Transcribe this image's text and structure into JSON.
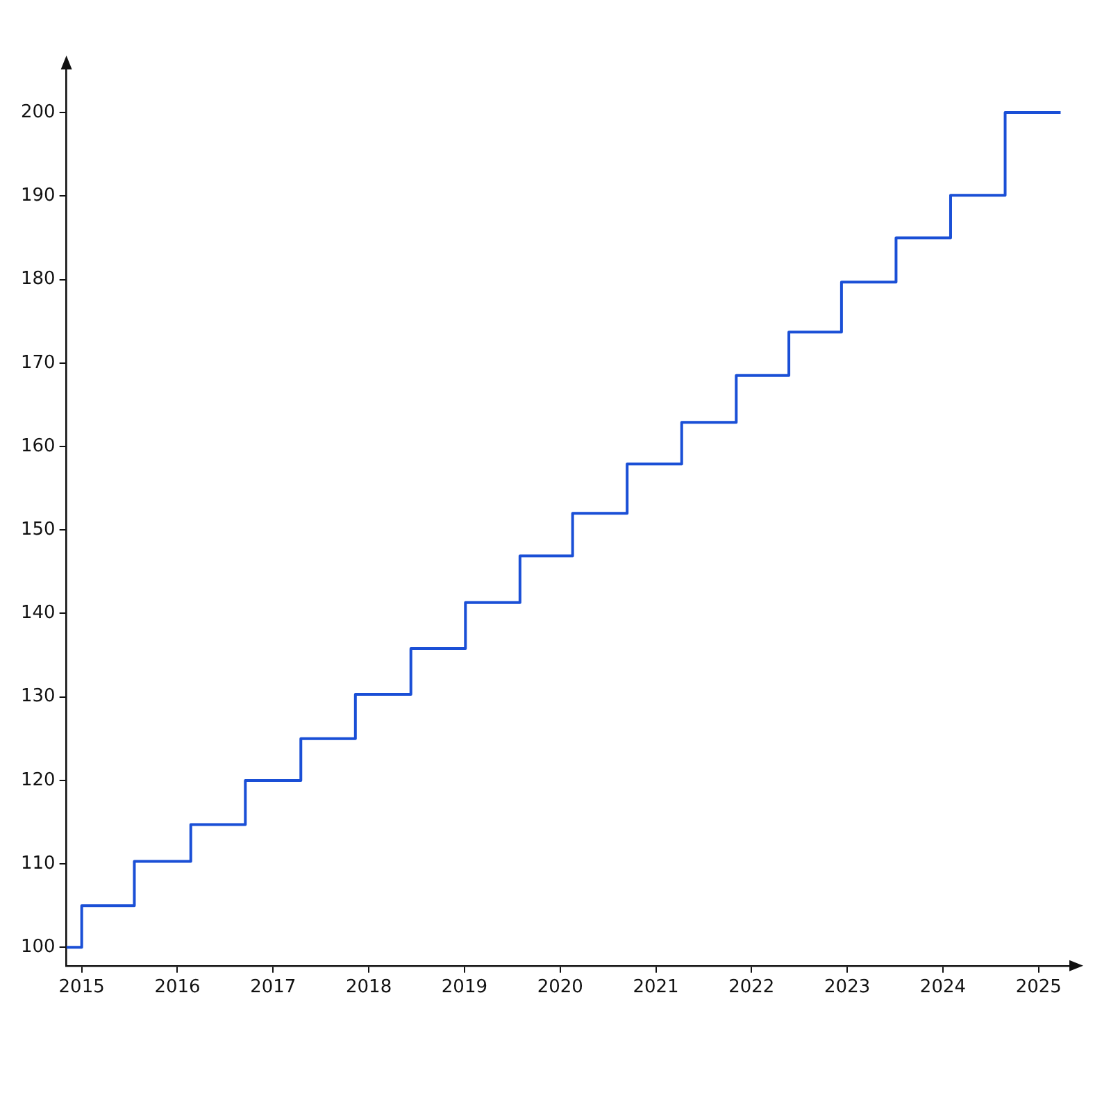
{
  "chart_data": {
    "type": "step",
    "x": [
      2014.84,
      2015.0,
      2015.55,
      2016.14,
      2016.71,
      2017.29,
      2017.86,
      2018.44,
      2019.01,
      2019.58,
      2020.13,
      2020.7,
      2021.27,
      2021.84,
      2022.39,
      2022.94,
      2023.51,
      2024.08,
      2024.65,
      2025.23
    ],
    "series": [
      {
        "color": "#1a4fd6",
        "values": [
          100,
          105,
          110.3,
          114.7,
          120,
          125,
          130.3,
          135.8,
          141.3,
          146.9,
          152,
          157.9,
          162.9,
          168.5,
          173.7,
          179.7,
          185,
          190.1,
          200,
          200
        ]
      }
    ],
    "xlim": [
      2014.84,
      2025.35
    ],
    "xticks": [
      2015,
      2016,
      2017,
      2018,
      2019,
      2020,
      2021,
      2022,
      2023,
      2024,
      2025
    ],
    "ylim": [
      97.8,
      205.5
    ],
    "yticks": [
      100,
      110,
      120,
      130,
      140,
      150,
      160,
      170,
      180,
      190,
      200
    ],
    "grid": false,
    "legend": false,
    "marker": "none",
    "line_style": "solid"
  }
}
